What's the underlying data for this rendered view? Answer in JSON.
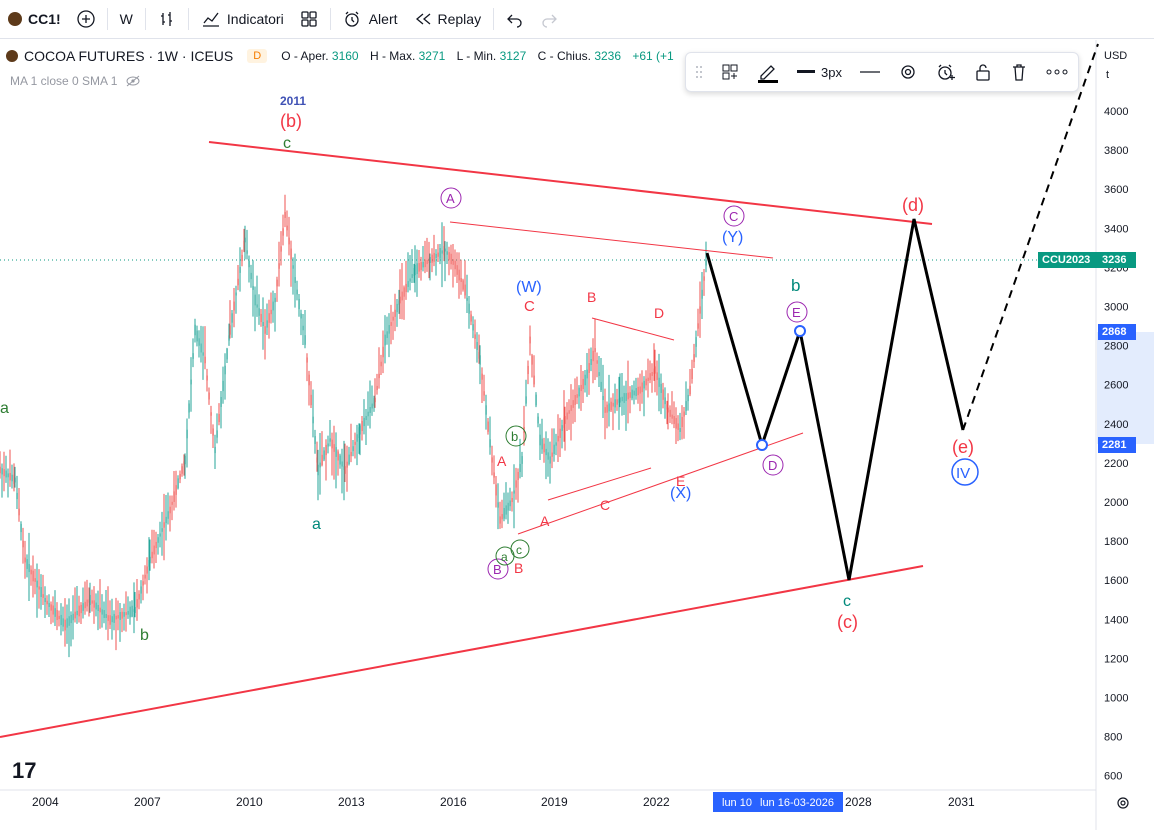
{
  "topbar": {
    "symbol": "CC1!",
    "interval": "W",
    "indicators_label": "Indicatori",
    "alert_label": "Alert",
    "replay_label": "Replay"
  },
  "legend": {
    "title": "COCOA FUTURES · 1W · ICEUS",
    "badge": "D",
    "open_label": "O - Aper.",
    "open": "3160",
    "high_label": "H - Max.",
    "high": "3271",
    "low_label": "L - Min.",
    "low": "3127",
    "close_label": "C - Chius.",
    "close": "3236",
    "change": "+61 (+1",
    "indicator": "MA 1 close 0 SMA 1"
  },
  "drawing_toolbar": {
    "width_label": "3px"
  },
  "price_axis": {
    "currency": "USD",
    "unit": "t",
    "ticks": [
      "4000",
      "3800",
      "3600",
      "3400",
      "3200",
      "3000",
      "2800",
      "2600",
      "2400",
      "2200",
      "2000",
      "1800",
      "1600",
      "1400",
      "1200",
      "1000",
      "800",
      "600"
    ],
    "badges": {
      "symbol_tag": "CCU2023",
      "last_price": "3236",
      "upper_level": "2868",
      "lower_level": "2281"
    }
  },
  "time_axis": {
    "ticks": [
      "2004",
      "2007",
      "2010",
      "2013",
      "2016",
      "2019",
      "2022",
      "2028",
      "2031"
    ],
    "cursor_label_1": "lun 10",
    "cursor_label_2": "lun 16-03-2026"
  },
  "annotations": {
    "year_2011": "2011",
    "b_paren": "(b)",
    "c_top": "c",
    "A_circle": "A",
    "C_circle": "C",
    "Y_paren": "(Y)",
    "W_paren": "(W)",
    "C_red": "C",
    "B_red_top": "B",
    "D_red": "D",
    "b_circle": "b",
    "A_red": "A",
    "E_red": "E",
    "X_paren": "(X)",
    "A_red2": "A",
    "C_red2": "C",
    "a_left": "a",
    "a_mid": "a",
    "b_left": "b",
    "B_circle": "B",
    "a_circle": "a",
    "c_circle": "c",
    "B_red_low": "B",
    "b_teal": "b",
    "E_circle": "E",
    "D_circle": "D",
    "c_bottom": "c",
    "c_paren": "(c)",
    "d_paren": "(d)",
    "e_paren": "(e)",
    "IV_circle": "IV"
  },
  "logo": "17"
}
